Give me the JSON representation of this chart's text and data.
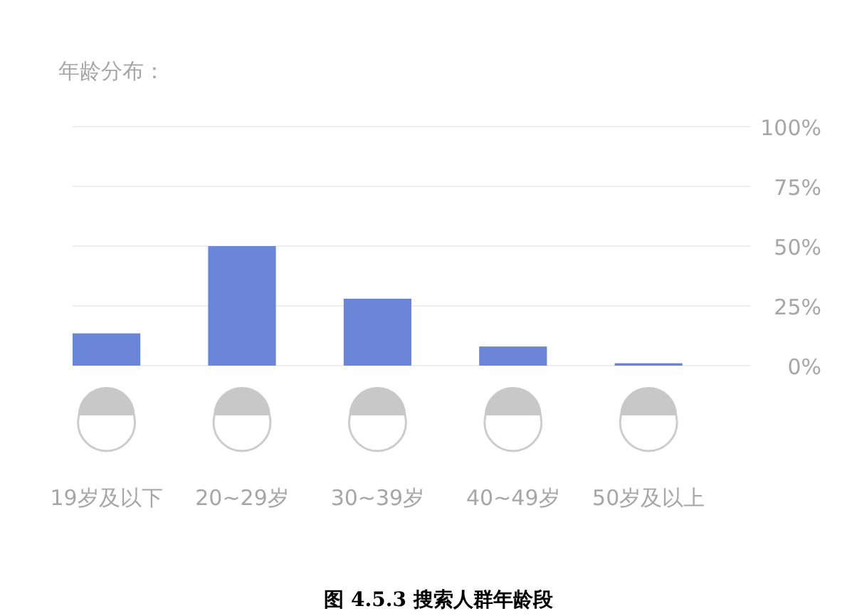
{
  "chart_data": {
    "type": "bar",
    "title": "年龄分布：",
    "categories": [
      "19岁及以下",
      "20~29岁",
      "30~39岁",
      "40~49岁",
      "50岁及以上"
    ],
    "values": [
      13.5,
      50,
      28,
      8,
      1
    ],
    "color": "#6b86d6",
    "ylim": [
      0,
      100
    ],
    "yticks": [
      {
        "value": 0,
        "label": "0%"
      },
      {
        "value": 25,
        "label": "25%"
      },
      {
        "value": 50,
        "label": "50%"
      },
      {
        "value": 75,
        "label": "75%"
      },
      {
        "value": 100,
        "label": "100%"
      }
    ],
    "grid": "y",
    "annotations": [
      "图 4.5.3 搜索人群年龄段"
    ]
  }
}
